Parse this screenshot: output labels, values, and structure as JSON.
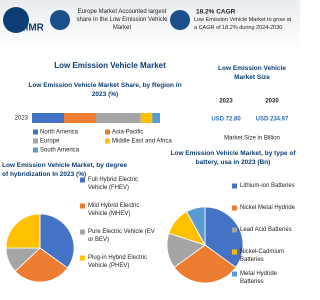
{
  "header": {
    "logo": "MMR",
    "stat1": "Europe Market Accounted largest share in the Low Emission Vehicle Market",
    "stat2_title": "18.2% CAGR",
    "stat2": "Low Emission Vehicle Market to grow at a CAGR of 18.2% during 2024-2030"
  },
  "title": "Low Emission Vehicle Market",
  "market_size": {
    "title": "Low Emission Vehicle Market Size",
    "years": [
      "2023",
      "2030"
    ],
    "values": [
      "USD 72.80",
      "USD 234.97"
    ],
    "note": "Market Size in Billion"
  },
  "chart_data": [
    {
      "type": "bar",
      "orientation": "horizontal",
      "stacked": true,
      "title": "Low Emission Vehicle Market Share, by Region in 2023 (%)",
      "categories": [
        "2023"
      ],
      "xlim": [
        0,
        100
      ],
      "series": [
        {
          "name": "North America",
          "color": "#4472c4",
          "values": [
            25
          ]
        },
        {
          "name": "Asia-Pacific",
          "color": "#ed7d31",
          "values": [
            25
          ]
        },
        {
          "name": "Europe",
          "color": "#a5a5a5",
          "values": [
            35
          ]
        },
        {
          "name": "Middle East and Africa",
          "color": "#ffc000",
          "values": [
            9
          ]
        },
        {
          "name": "South America",
          "color": "#5b9bd5",
          "values": [
            6
          ]
        }
      ]
    },
    {
      "type": "pie",
      "title": "Low Emission Vehicle Market, by degree of hybridization In 2023 (%)",
      "categories": [
        "Full Hybrid Electric Vehicle (FHEV)",
        "Mild Hybrid Electric Vehicle (MHEV)",
        "Pure Electric Vehicle (EV or BEV)",
        "Plug-in Hybrid Electric Vehicle (PHEV)"
      ],
      "colors": [
        "#4472c4",
        "#ed7d31",
        "#a5a5a5",
        "#ffc000"
      ],
      "values": [
        35,
        28,
        12,
        25
      ]
    },
    {
      "type": "pie",
      "title": "Low Emission Vehicle Market, by type of battery, usa in 2023 (Bn)",
      "categories": [
        "Lithium-ion Batteries",
        "Nickel Metal Hydride",
        "Lead Acid Batteries",
        "Nickel-Cadmium Batteries",
        "Metal Hydride Batteries"
      ],
      "colors": [
        "#4472c4",
        "#ed7d31",
        "#a5a5a5",
        "#ffc000",
        "#5b9bd5"
      ],
      "values": [
        35,
        30,
        15,
        12,
        8
      ]
    }
  ]
}
